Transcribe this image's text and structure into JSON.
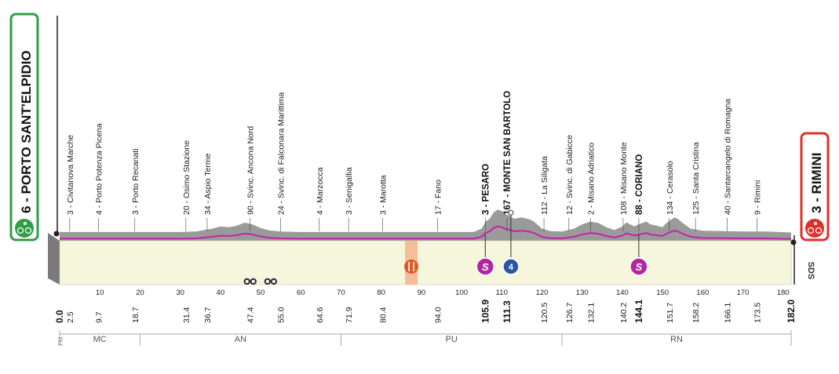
{
  "chart_data": {
    "type": "area",
    "xlim": [
      0,
      182
    ],
    "start": {
      "label": "6 - PORTO SANT'ELPIDIO",
      "color": "#2e9e47"
    },
    "finish": {
      "label": "3 - RIMINI",
      "color": "#e0302a"
    },
    "km_ticks": [
      10,
      20,
      30,
      40,
      50,
      60,
      70,
      80,
      90,
      100,
      110,
      120,
      130,
      140,
      150,
      160,
      170,
      180
    ],
    "elevation_profile": [
      [
        0,
        6
      ],
      [
        3,
        6
      ],
      [
        6,
        6
      ],
      [
        10,
        6
      ],
      [
        13,
        6
      ],
      [
        15,
        6
      ],
      [
        18,
        6
      ],
      [
        22,
        6
      ],
      [
        26,
        6
      ],
      [
        30,
        6
      ],
      [
        34,
        10
      ],
      [
        38,
        30
      ],
      [
        40,
        45
      ],
      [
        42,
        40
      ],
      [
        44,
        50
      ],
      [
        46,
        72
      ],
      [
        48,
        60
      ],
      [
        50,
        35
      ],
      [
        52,
        18
      ],
      [
        55,
        10
      ],
      [
        60,
        6
      ],
      [
        65,
        6
      ],
      [
        70,
        6
      ],
      [
        75,
        6
      ],
      [
        80,
        6
      ],
      [
        85,
        6
      ],
      [
        90,
        6
      ],
      [
        95,
        6
      ],
      [
        100,
        6
      ],
      [
        103,
        6
      ],
      [
        105,
        30
      ],
      [
        106,
        80
      ],
      [
        107,
        100
      ],
      [
        108,
        145
      ],
      [
        109,
        165
      ],
      [
        110,
        155
      ],
      [
        111,
        130
      ],
      [
        112,
        122
      ],
      [
        113,
        100
      ],
      [
        115,
        110
      ],
      [
        117,
        95
      ],
      [
        118,
        80
      ],
      [
        120,
        30
      ],
      [
        122,
        12
      ],
      [
        125,
        10
      ],
      [
        128,
        30
      ],
      [
        130,
        60
      ],
      [
        132,
        80
      ],
      [
        134,
        70
      ],
      [
        136,
        40
      ],
      [
        138,
        20
      ],
      [
        140,
        45
      ],
      [
        141,
        75
      ],
      [
        142,
        60
      ],
      [
        143,
        45
      ],
      [
        144,
        60
      ],
      [
        145,
        70
      ],
      [
        146,
        80
      ],
      [
        147,
        60
      ],
      [
        148,
        55
      ],
      [
        150,
        40
      ],
      [
        151,
        70
      ],
      [
        152,
        90
      ],
      [
        153,
        110
      ],
      [
        154,
        95
      ],
      [
        155,
        70
      ],
      [
        157,
        30
      ],
      [
        160,
        15
      ],
      [
        165,
        12
      ],
      [
        170,
        10
      ],
      [
        175,
        10
      ],
      [
        178,
        8
      ],
      [
        180,
        5
      ],
      [
        182,
        3
      ]
    ],
    "ylim": [
      0,
      400
    ],
    "waypoints": [
      {
        "label": "3 - Civitanova Marche",
        "km": 2.5,
        "dist": "2.5"
      },
      {
        "label": "4 - Porto Potenza Picena",
        "km": 9.7,
        "dist": "9.7"
      },
      {
        "label": "3 - Porto Recanati",
        "km": 18.7,
        "dist": "18.7"
      },
      {
        "label": "20 - Osimo Stazione",
        "km": 31.4,
        "dist": "31.4"
      },
      {
        "label": "34 - Aspio Terme",
        "km": 36.7,
        "dist": "36.7"
      },
      {
        "label": "90 - Svinc. Ancona Nord",
        "km": 47.4,
        "dist": "47.4"
      },
      {
        "label": "24 - Svinc. di Falconara Marittima",
        "km": 55.0,
        "dist": "55.0"
      },
      {
        "label": "4 - Marzocca",
        "km": 64.6,
        "dist": "64.6"
      },
      {
        "label": "3 - Senigallia",
        "km": 71.9,
        "dist": "71.9"
      },
      {
        "label": "3 - Marotta",
        "km": 80.4,
        "dist": "80.4"
      },
      {
        "label": "17 - Fano",
        "km": 94.0,
        "dist": "94.0"
      },
      {
        "label": "3 - PESARO",
        "km": 105.9,
        "dist": "105.9",
        "bold": true
      },
      {
        "label": "167 - MONTE SAN BARTOLO",
        "km": 111.3,
        "dist": "111.3",
        "bold": true
      },
      {
        "label": "112 - La Siligata",
        "km": 120.5,
        "dist": "120.5"
      },
      {
        "label": "12 - Svinc. di Gabicce",
        "km": 126.7,
        "dist": "126.7"
      },
      {
        "label": "2 - Misano Adriatico",
        "km": 132.1,
        "dist": "132.1"
      },
      {
        "label": "108 - Misano Monte",
        "km": 140.2,
        "dist": "140.2"
      },
      {
        "label": "88 - CORIANO",
        "km": 144.1,
        "dist": "144.1",
        "bold": true
      },
      {
        "label": "134 - Cerasolo",
        "km": 151.7,
        "dist": "151.7"
      },
      {
        "label": "125 - Santa Cristina",
        "km": 158.2,
        "dist": "158.2"
      },
      {
        "label": "40 - Santarcangelo di Romagna",
        "km": 166.1,
        "dist": "166.1"
      },
      {
        "label": "9 - Rimini",
        "km": 173.5,
        "dist": "173.5"
      }
    ],
    "start_dist": "0.0",
    "finish_dist": "182.0",
    "markers": [
      {
        "type": "sprint",
        "km": 105.9,
        "label": "S",
        "color": "#b0279f"
      },
      {
        "type": "gpm",
        "km": 111.3,
        "label": "4",
        "color": "#2a56a8"
      },
      {
        "type": "sprint",
        "km": 144.1,
        "label": "S",
        "color": "#b0279f"
      },
      {
        "type": "feed",
        "km": 87.5
      },
      {
        "type": "bonus",
        "km": 47.4
      },
      {
        "type": "bonus",
        "km": 52.5
      }
    ],
    "regions": [
      {
        "label": "MC",
        "from": 0,
        "to": 20
      },
      {
        "label": "AN",
        "from": 20,
        "to": 70
      },
      {
        "label": "PU",
        "from": 70,
        "to": 125
      },
      {
        "label": "RN",
        "from": 125,
        "to": 182
      }
    ],
    "region_boundaries": [
      20,
      70,
      125
    ],
    "logo_text": "SDS",
    "fm_label": "FM",
    "colors": {
      "profile_fill": "#f6f6dc",
      "profile_top": "#9a9a9a",
      "route_line": "#c025a8",
      "left_side": "#7a7a7a"
    }
  }
}
